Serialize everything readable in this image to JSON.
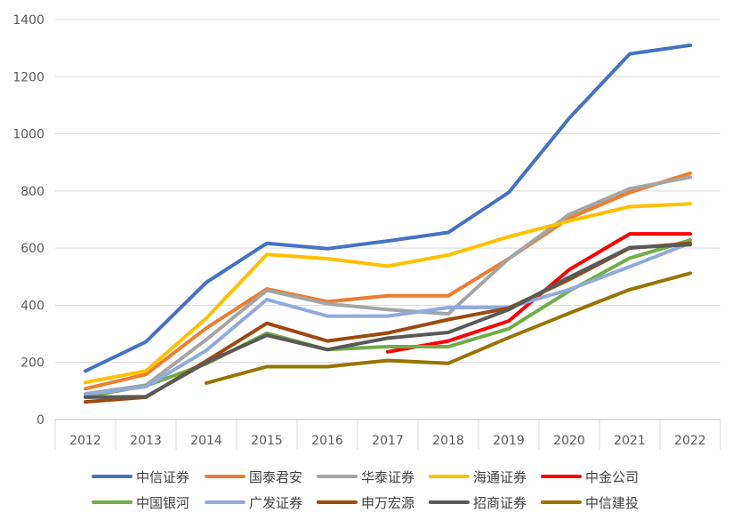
{
  "chart_data": {
    "type": "line",
    "title": "",
    "xlabel": "",
    "ylabel": "",
    "categories": [
      "2012",
      "2013",
      "2014",
      "2015",
      "2016",
      "2017",
      "2018",
      "2019",
      "2020",
      "2021",
      "2022"
    ],
    "y_ticks": [
      "0",
      "200",
      "400",
      "600",
      "800",
      "1000",
      "1200",
      "1400"
    ],
    "ylim": [
      0,
      1400
    ],
    "grid": "horizontal",
    "legend_position": "bottom",
    "series": [
      {
        "name": "中信证券",
        "color": "#4472C4",
        "values": [
          170,
          272,
          480,
          617,
          598,
          625,
          655,
          795,
          1055,
          1280,
          1310
        ]
      },
      {
        "name": "国泰君安",
        "color": "#ED7D31",
        "values": [
          108,
          158,
          320,
          457,
          413,
          433,
          433,
          563,
          705,
          795,
          862
        ]
      },
      {
        "name": "华泰证券",
        "color": "#A5A5A5",
        "values": [
          90,
          120,
          280,
          452,
          405,
          385,
          370,
          563,
          718,
          808,
          848
        ]
      },
      {
        "name": "海通证券",
        "color": "#FFC000",
        "values": [
          130,
          170,
          355,
          578,
          563,
          537,
          576,
          640,
          695,
          745,
          755
        ]
      },
      {
        "name": "中金公司",
        "color": "#FF0000",
        "values": [
          null,
          null,
          null,
          null,
          null,
          237,
          275,
          345,
          525,
          650,
          650
        ]
      },
      {
        "name": "中国银河",
        "color": "#70AD47",
        "values": [
          80,
          118,
          195,
          302,
          245,
          255,
          255,
          318,
          450,
          565,
          628
        ]
      },
      {
        "name": "广发证券",
        "color": "#8FAADC",
        "values": [
          88,
          115,
          242,
          420,
          362,
          362,
          392,
          393,
          455,
          535,
          618
        ]
      },
      {
        "name": "申万宏源",
        "color": "#9E480E",
        "values": [
          62,
          78,
          205,
          337,
          275,
          303,
          350,
          390,
          490,
          600,
          617
        ]
      },
      {
        "name": "招商证券",
        "color": "#595959",
        "values": [
          78,
          80,
          200,
          295,
          245,
          285,
          305,
          385,
          498,
          602,
          612
        ]
      },
      {
        "name": "中信建投",
        "color": "#997300",
        "values": [
          null,
          null,
          128,
          185,
          185,
          207,
          197,
          287,
          372,
          455,
          512
        ]
      }
    ]
  }
}
